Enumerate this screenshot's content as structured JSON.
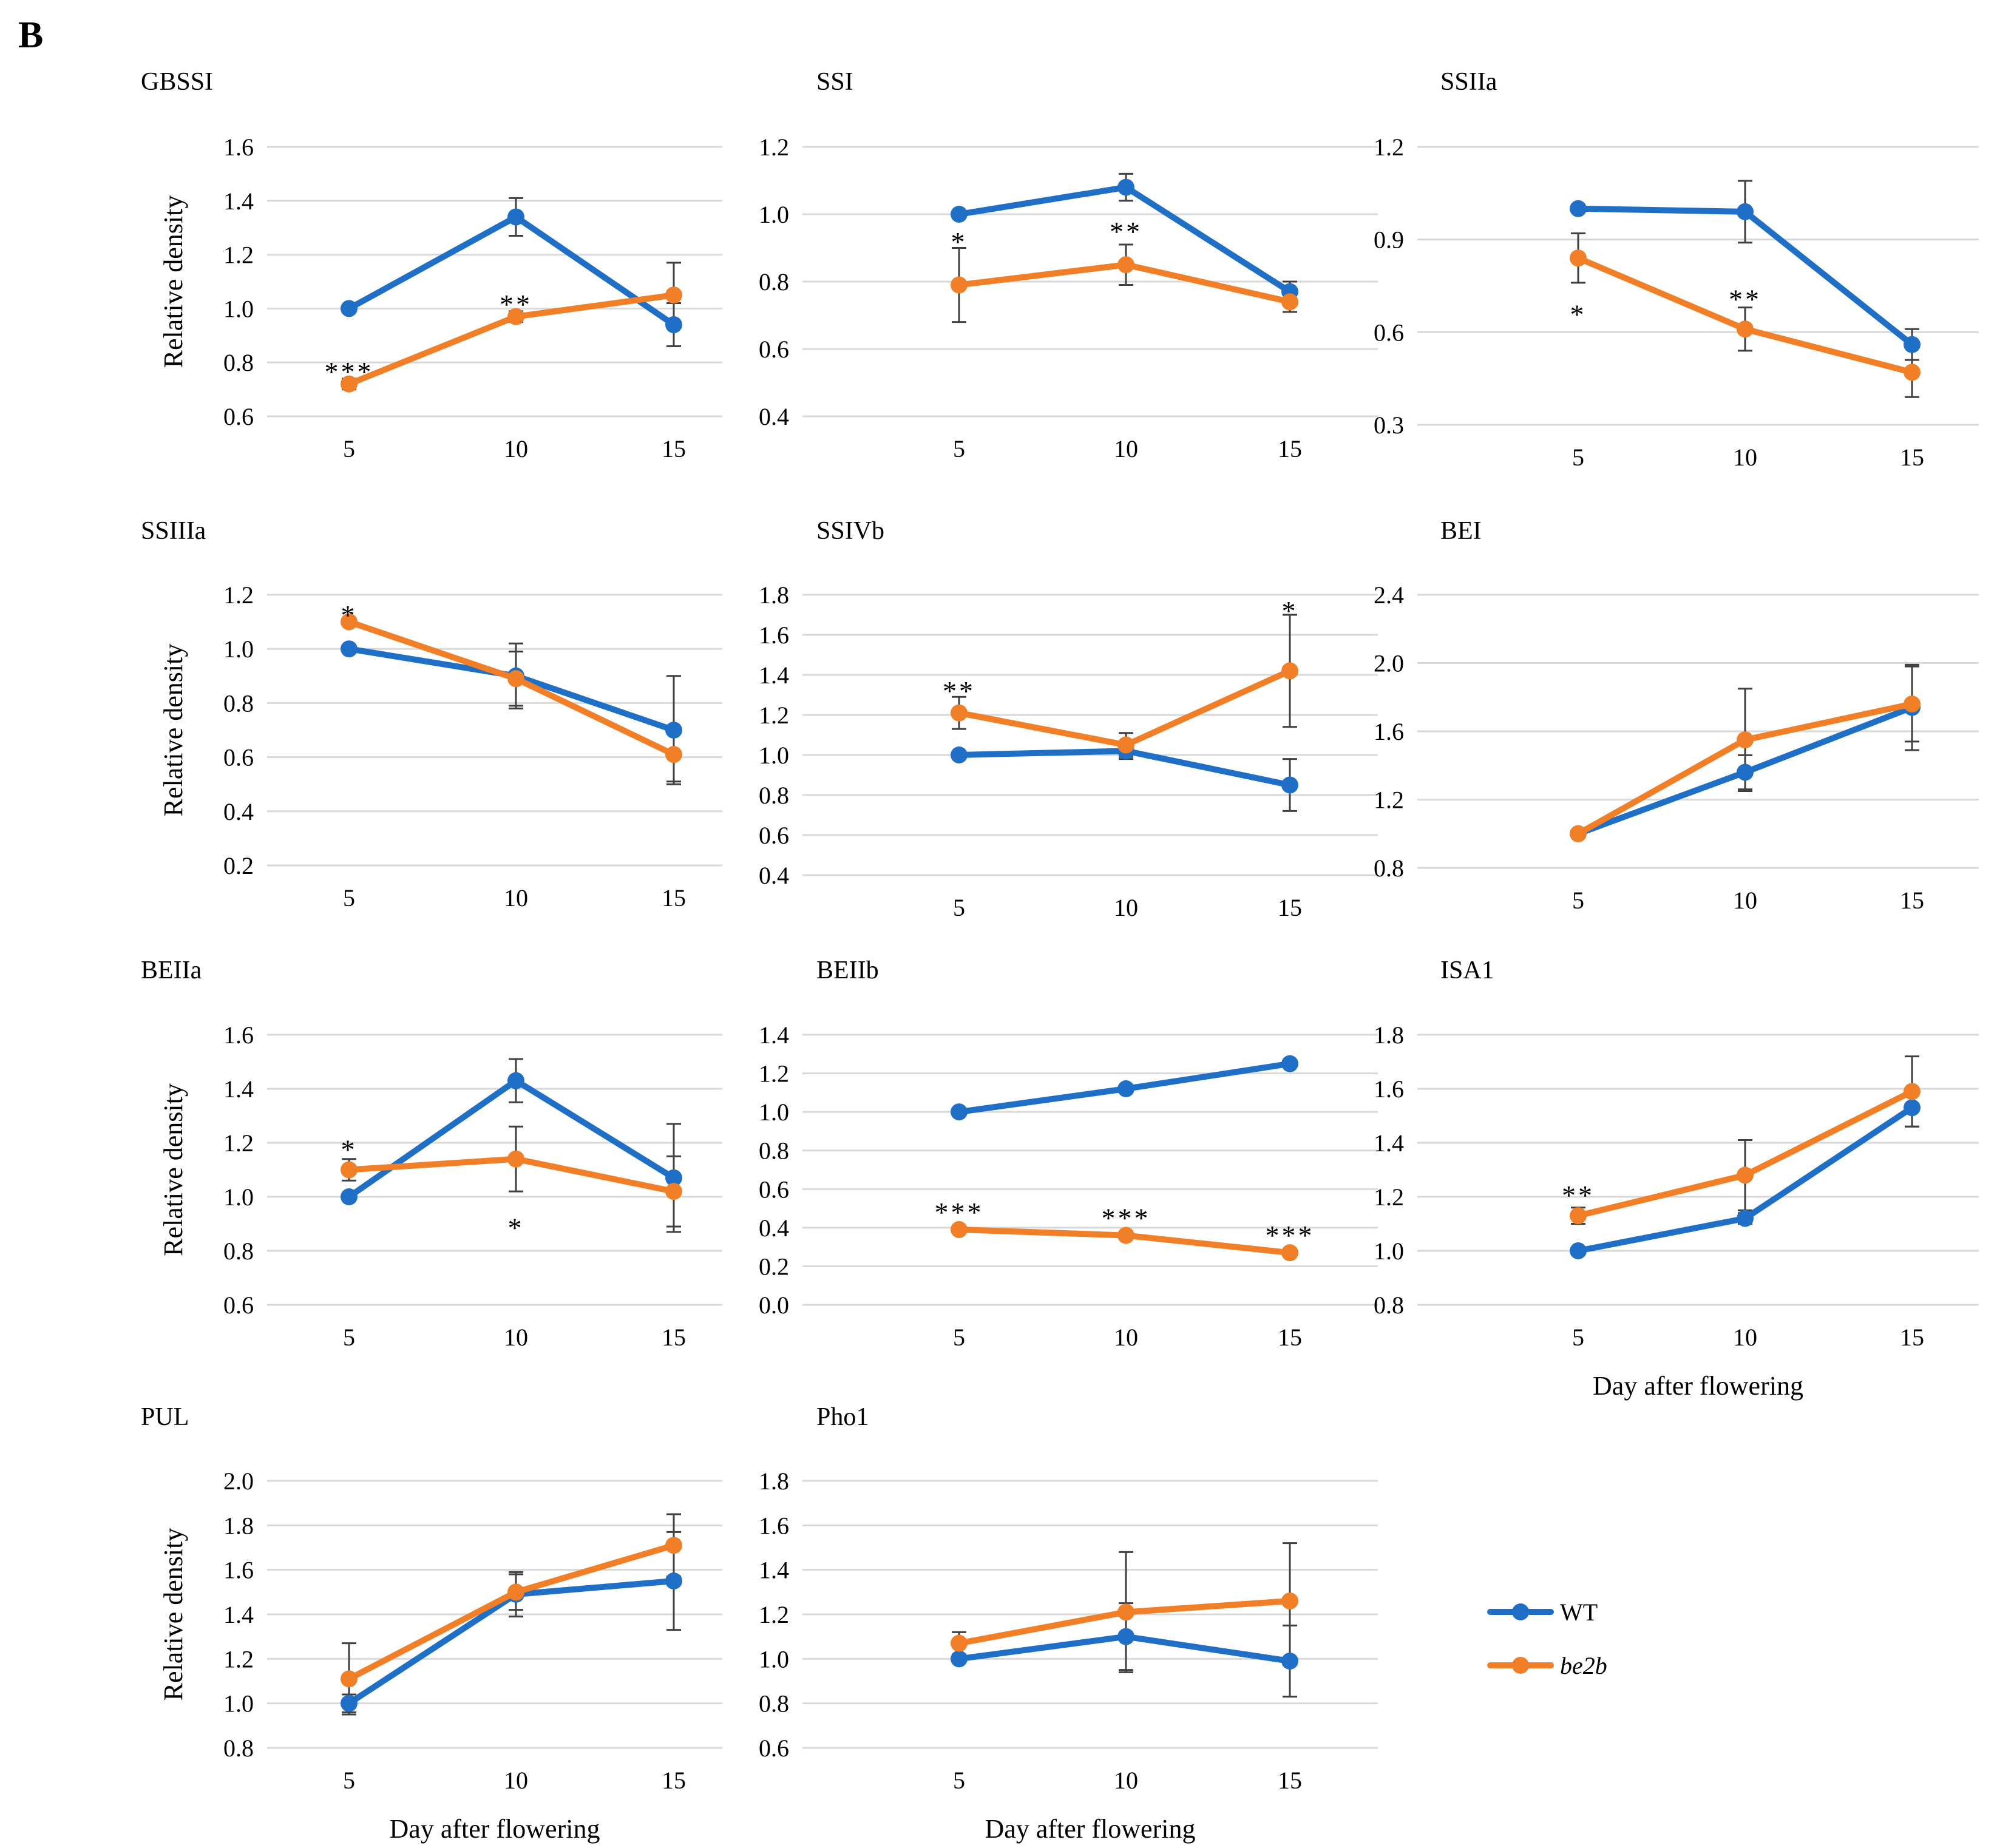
{
  "panel_label": "B",
  "colors": {
    "wt": "#1f6fc6",
    "be2b": "#f07f27",
    "grid": "#d9d9d9",
    "error_bar": "#404040"
  },
  "legend": {
    "wt": "WT",
    "be2b": "be2b"
  },
  "chart_data": [
    {
      "type": "line",
      "title": "GBSSI",
      "ylabel": "Relative density",
      "xlabel": "",
      "categories": [
        "5",
        "10",
        "15"
      ],
      "ylim": [
        0.6,
        1.6
      ],
      "yticks": [
        "0.6",
        "0.8",
        "1.0",
        "1.2",
        "1.4",
        "1.6"
      ],
      "series": [
        {
          "name": "WT",
          "values": [
            1.0,
            1.34,
            0.94
          ],
          "errors": [
            0.0,
            0.07,
            0.08
          ]
        },
        {
          "name": "be2b",
          "values": [
            0.72,
            0.97,
            1.05
          ],
          "errors": [
            0.02,
            0.02,
            0.12
          ]
        }
      ],
      "annotations": [
        {
          "text": "***",
          "x": "5",
          "y": 0.78
        },
        {
          "text": "**",
          "x": "10",
          "y": 1.03
        }
      ]
    },
    {
      "type": "line",
      "title": "SSI",
      "ylabel": "",
      "xlabel": "",
      "categories": [
        "5",
        "10",
        "15"
      ],
      "ylim": [
        0.4,
        1.2
      ],
      "yticks": [
        "0.4",
        "0.6",
        "0.8",
        "1.0",
        "1.2"
      ],
      "series": [
        {
          "name": "WT",
          "values": [
            1.0,
            1.08,
            0.77
          ],
          "errors": [
            0.0,
            0.04,
            0.03
          ]
        },
        {
          "name": "be2b",
          "values": [
            0.79,
            0.85,
            0.74
          ],
          "errors": [
            0.11,
            0.06,
            0.03
          ]
        }
      ],
      "annotations": [
        {
          "text": "*",
          "x": "5",
          "y": 0.93
        },
        {
          "text": "**",
          "x": "10",
          "y": 0.96
        }
      ]
    },
    {
      "type": "line",
      "title": "SSIIa",
      "ylabel": "",
      "xlabel": "",
      "categories": [
        "5",
        "10",
        "15"
      ],
      "ylim": [
        0.3,
        1.2
      ],
      "yticks": [
        "0.3",
        "0.6",
        "0.9",
        "1.2"
      ],
      "series": [
        {
          "name": "WT",
          "values": [
            1.0,
            0.99,
            0.56
          ],
          "errors": [
            0.0,
            0.1,
            0.05
          ]
        },
        {
          "name": "be2b",
          "values": [
            0.84,
            0.61,
            0.47
          ],
          "errors": [
            0.08,
            0.07,
            0.08
          ]
        }
      ],
      "annotations": [
        {
          "text": "*",
          "x": "5",
          "y": 0.67
        },
        {
          "text": "**",
          "x": "10",
          "y": 0.72
        }
      ]
    },
    {
      "type": "line",
      "title": "SSIIIa",
      "ylabel": "Relative density",
      "xlabel": "",
      "categories": [
        "5",
        "10",
        "15"
      ],
      "ylim": [
        0.2,
        1.2
      ],
      "yticks": [
        "0.2",
        "0.4",
        "0.6",
        "0.8",
        "1.0",
        "1.2"
      ],
      "series": [
        {
          "name": "WT",
          "values": [
            1.0,
            0.9,
            0.7
          ],
          "errors": [
            0.0,
            0.12,
            0.2
          ]
        },
        {
          "name": "be2b",
          "values": [
            1.1,
            0.89,
            0.61
          ],
          "errors": [
            0.01,
            0.1,
            0.1
          ]
        }
      ],
      "annotations": [
        {
          "text": "*",
          "x": "5",
          "y": 1.14
        }
      ]
    },
    {
      "type": "line",
      "title": "SSIVb",
      "ylabel": "",
      "xlabel": "",
      "categories": [
        "5",
        "10",
        "15"
      ],
      "ylim": [
        0.4,
        1.8
      ],
      "yticks": [
        "0.4",
        "0.6",
        "0.8",
        "1.0",
        "1.2",
        "1.4",
        "1.6",
        "1.8"
      ],
      "series": [
        {
          "name": "WT",
          "values": [
            1.0,
            1.02,
            0.85
          ],
          "errors": [
            0.0,
            0.04,
            0.13
          ]
        },
        {
          "name": "be2b",
          "values": [
            1.21,
            1.05,
            1.42
          ],
          "errors": [
            0.08,
            0.06,
            0.28
          ]
        }
      ],
      "annotations": [
        {
          "text": "**",
          "x": "5",
          "y": 1.34
        },
        {
          "text": "*",
          "x": "15",
          "y": 1.74
        }
      ]
    },
    {
      "type": "line",
      "title": "BEI",
      "ylabel": "",
      "xlabel": "",
      "categories": [
        "5",
        "10",
        "15"
      ],
      "ylim": [
        0.8,
        2.4
      ],
      "yticks": [
        "0.8",
        "1.2",
        "1.6",
        "2.0",
        "2.4"
      ],
      "series": [
        {
          "name": "WT",
          "values": [
            1.0,
            1.36,
            1.74
          ],
          "errors": [
            0.0,
            0.1,
            0.25
          ]
        },
        {
          "name": "be2b",
          "values": [
            1.0,
            1.55,
            1.76
          ],
          "errors": [
            0.0,
            0.3,
            0.22
          ]
        }
      ],
      "annotations": []
    },
    {
      "type": "line",
      "title": "BEIIa",
      "ylabel": "Relative density",
      "xlabel": "",
      "categories": [
        "5",
        "10",
        "15"
      ],
      "ylim": [
        0.6,
        1.6
      ],
      "yticks": [
        "0.6",
        "0.8",
        "1.0",
        "1.2",
        "1.4",
        "1.6"
      ],
      "series": [
        {
          "name": "WT",
          "values": [
            1.0,
            1.43,
            1.07
          ],
          "errors": [
            0.0,
            0.08,
            0.2
          ]
        },
        {
          "name": "be2b",
          "values": [
            1.1,
            1.14,
            1.02
          ],
          "errors": [
            0.04,
            0.12,
            0.13
          ]
        }
      ],
      "annotations": [
        {
          "text": "*",
          "x": "5",
          "y": 1.19
        },
        {
          "text": "*",
          "x": "10",
          "y": 0.9
        }
      ]
    },
    {
      "type": "line",
      "title": "BEIIb",
      "ylabel": "",
      "xlabel": "",
      "categories": [
        "5",
        "10",
        "15"
      ],
      "ylim": [
        0.0,
        1.4
      ],
      "yticks": [
        "0.0",
        "0.2",
        "0.4",
        "0.6",
        "0.8",
        "1.0",
        "1.2",
        "1.4"
      ],
      "series": [
        {
          "name": "WT",
          "values": [
            1.0,
            1.12,
            1.25
          ],
          "errors": [
            0.0,
            0.0,
            0.0
          ]
        },
        {
          "name": "be2b",
          "values": [
            0.39,
            0.36,
            0.27
          ],
          "errors": [
            0.0,
            0.0,
            0.0
          ]
        }
      ],
      "annotations": [
        {
          "text": "***",
          "x": "5",
          "y": 0.5
        },
        {
          "text": "***",
          "x": "10",
          "y": 0.47
        },
        {
          "text": "***",
          "x": "15",
          "y": 0.38
        }
      ]
    },
    {
      "type": "line",
      "title": "ISA1",
      "ylabel": "",
      "xlabel": "Day after flowering",
      "categories": [
        "5",
        "10",
        "15"
      ],
      "ylim": [
        0.8,
        1.8
      ],
      "yticks": [
        "0.8",
        "1.0",
        "1.2",
        "1.4",
        "1.6",
        "1.8"
      ],
      "series": [
        {
          "name": "WT",
          "values": [
            1.0,
            1.12,
            1.53
          ],
          "errors": [
            0.0,
            0.02,
            0.07
          ]
        },
        {
          "name": "be2b",
          "values": [
            1.13,
            1.28,
            1.59
          ],
          "errors": [
            0.03,
            0.13,
            0.13
          ]
        }
      ],
      "annotations": [
        {
          "text": "**",
          "x": "5",
          "y": 1.22
        }
      ]
    },
    {
      "type": "line",
      "title": "PUL",
      "ylabel": "Relative density",
      "xlabel": "Day after flowering",
      "categories": [
        "5",
        "10",
        "15"
      ],
      "ylim": [
        0.8,
        2.0
      ],
      "yticks": [
        "0.8",
        "1.0",
        "1.2",
        "1.4",
        "1.6",
        "1.8",
        "2.0"
      ],
      "series": [
        {
          "name": "WT",
          "values": [
            1.0,
            1.49,
            1.55
          ],
          "errors": [
            0.04,
            0.1,
            0.22
          ]
        },
        {
          "name": "be2b",
          "values": [
            1.11,
            1.5,
            1.71
          ],
          "errors": [
            0.16,
            0.08,
            0.14
          ]
        }
      ],
      "annotations": []
    },
    {
      "type": "line",
      "title": "Pho1",
      "ylabel": "",
      "xlabel": "Day after flowering",
      "categories": [
        "5",
        "10",
        "15"
      ],
      "ylim": [
        0.6,
        1.8
      ],
      "yticks": [
        "0.6",
        "0.8",
        "1.0",
        "1.2",
        "1.4",
        "1.6",
        "1.8"
      ],
      "series": [
        {
          "name": "WT",
          "values": [
            1.0,
            1.1,
            0.99
          ],
          "errors": [
            0.0,
            0.15,
            0.16
          ]
        },
        {
          "name": "be2b",
          "values": [
            1.07,
            1.21,
            1.26
          ],
          "errors": [
            0.05,
            0.27,
            0.26
          ]
        }
      ],
      "annotations": []
    }
  ]
}
